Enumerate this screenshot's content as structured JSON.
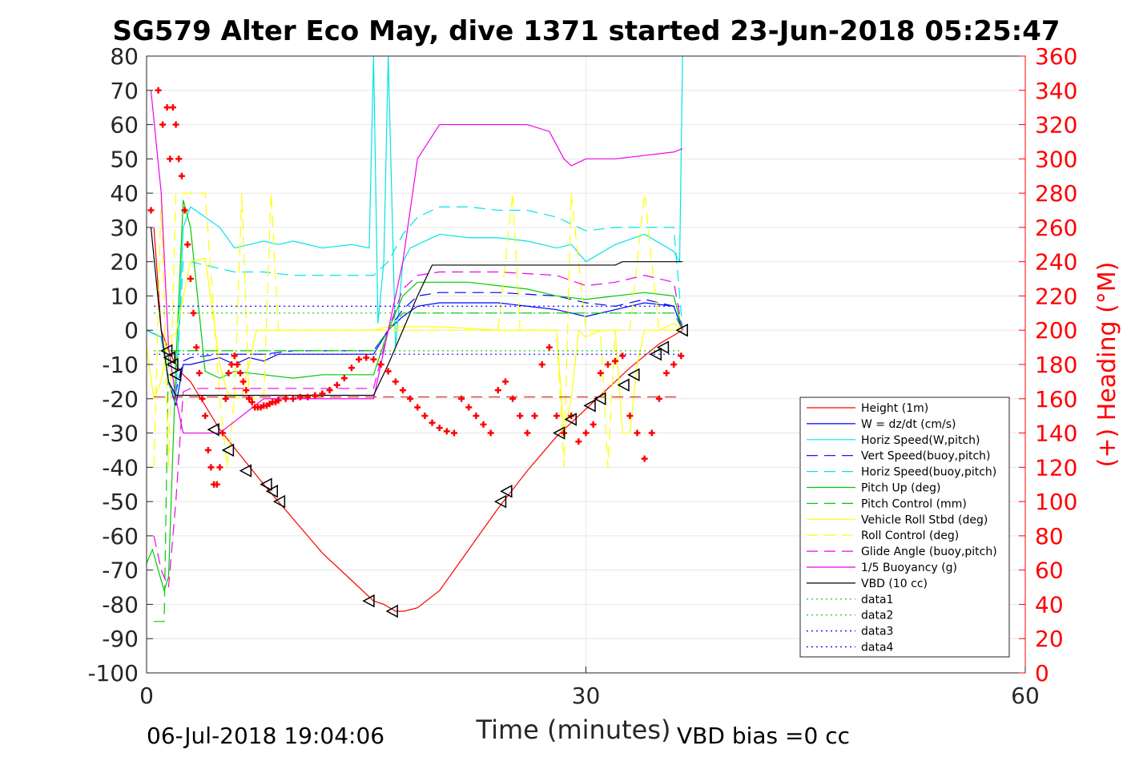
{
  "chart_data": {
    "type": "line",
    "title": "SG579 Alter Eco May, dive 1371 started 23-Jun-2018 05:25:47",
    "xlabel": "Time (minutes)",
    "ylabel_right": "(+) Heading (°M)",
    "xlim": [
      0,
      60
    ],
    "ylim_left": [
      -100,
      80
    ],
    "ylim_right": [
      0,
      360
    ],
    "xticks": [
      0,
      30,
      60
    ],
    "yticks_left": [
      80,
      70,
      60,
      50,
      40,
      30,
      20,
      10,
      0,
      -10,
      -20,
      -30,
      -40,
      -50,
      -60,
      -70,
      -80,
      -90,
      -100
    ],
    "yticks_right": [
      360,
      340,
      320,
      300,
      280,
      260,
      240,
      220,
      200,
      180,
      160,
      140,
      120,
      100,
      80,
      60,
      40,
      20,
      0
    ],
    "grid": "major x",
    "legend_position": "bottom-right",
    "footer_left": "06-Jul-2018 19:04:06",
    "footer_right": "VBD bias =0 cc",
    "series": [
      {
        "name": "Height (1m)",
        "color": "#ff0000",
        "style": "solid",
        "x": [
          0.5,
          1,
          1.5,
          2,
          2.5,
          3,
          5,
          8,
          10,
          12,
          14,
          15.5,
          16.2,
          17,
          17.6,
          18.5,
          20,
          22,
          24,
          26,
          28,
          29,
          31,
          33,
          35,
          36.6
        ],
        "y": [
          30,
          0,
          -6,
          -10,
          -13,
          -15,
          -29,
          -45,
          -55,
          -65,
          -73,
          -79,
          -80,
          -82,
          -82,
          -81,
          -76,
          -64,
          -52,
          -41,
          -31,
          -27,
          -19,
          -11,
          -4,
          0
        ]
      },
      {
        "name": "W = dz/dt (cm/s)",
        "color": "#0000ff",
        "style": "solid",
        "x": [
          0,
          1,
          1.5,
          2,
          2.5,
          3,
          4,
          5,
          6,
          7,
          8,
          9,
          10,
          12,
          14,
          15.5,
          16.5,
          17.5,
          18.5,
          20,
          22,
          24,
          26,
          28,
          29,
          30,
          32,
          34,
          36,
          36.6
        ],
        "y": [
          0,
          -2,
          -15,
          -22,
          -10,
          -10,
          -9,
          -8,
          -10,
          -8,
          -9,
          -7,
          -7,
          -7,
          -7,
          -7,
          0,
          4,
          7,
          8,
          8,
          8,
          7,
          6,
          5,
          4,
          6,
          8,
          7,
          0
        ]
      },
      {
        "name": "Horiz Speed(W,pitch)",
        "color": "#00e5e5",
        "style": "solid",
        "x": [
          0,
          1,
          1.5,
          2,
          2.5,
          3,
          4,
          5,
          6,
          7,
          8,
          9,
          10,
          12,
          14,
          15.2,
          15.5,
          15.8,
          16.2,
          16.5,
          17,
          17.5,
          18,
          18.5,
          20,
          22,
          24,
          26,
          28,
          29,
          30,
          32,
          34,
          36,
          36.4,
          36.6
        ],
        "y": [
          0,
          -2,
          -15,
          -20,
          30,
          36,
          33,
          30,
          24,
          25,
          26,
          25,
          26,
          24,
          25,
          24,
          80,
          2,
          20,
          80,
          -5,
          20,
          24,
          25,
          28,
          27,
          27,
          26,
          24,
          25,
          20,
          25,
          28,
          23,
          20,
          80
        ]
      },
      {
        "name": "Vert Speed(buoy,pitch)",
        "color": "#0000ff",
        "style": "dashed",
        "x": [
          0,
          1,
          1.5,
          2,
          2.5,
          3,
          5,
          8,
          10,
          12,
          14,
          15.5,
          16.5,
          17.5,
          18.5,
          20,
          24,
          28,
          30,
          32,
          34,
          36,
          36.6
        ],
        "y": [
          0,
          -2,
          -15,
          -18,
          -9,
          -8,
          -7,
          -7,
          -6,
          -6,
          -6,
          -6,
          0,
          6,
          10,
          11,
          11,
          10,
          8,
          7,
          9,
          7,
          0
        ]
      },
      {
        "name": "Horiz Speed(buoy,pitch)",
        "color": "#00e5e5",
        "style": "dashed",
        "x": [
          0,
          1,
          1.5,
          2,
          2.5,
          3,
          4,
          5,
          6,
          8,
          10,
          12,
          14,
          15.5,
          16.5,
          17.5,
          18.5,
          20,
          22,
          24,
          26,
          28,
          30,
          32,
          34,
          36,
          36.6
        ],
        "y": [
          0,
          -2,
          -15,
          -18,
          20,
          20,
          19,
          18,
          17,
          17,
          16,
          16,
          16,
          16,
          20,
          28,
          33,
          36,
          36,
          35,
          35,
          33,
          29,
          30,
          30,
          30,
          0
        ]
      },
      {
        "name": "Pitch Up (deg)",
        "color": "#00cc00",
        "style": "solid",
        "x": [
          0,
          0.4,
          0.8,
          1.2,
          1.5,
          2,
          2.5,
          3,
          4,
          5,
          6,
          8,
          10,
          12,
          14,
          15.5,
          16.5,
          17.5,
          18.5,
          20,
          22,
          24,
          26,
          28,
          30,
          32,
          34,
          36,
          36.6
        ],
        "y": [
          -68,
          -64,
          -70,
          -76,
          -72,
          -10,
          38,
          30,
          -12,
          -14,
          -12,
          -13,
          -14,
          -13,
          -13,
          -13,
          0,
          10,
          14,
          14,
          14,
          13,
          12,
          10,
          9,
          10,
          11,
          10,
          0
        ]
      },
      {
        "name": "Pitch Control (mm)",
        "color": "#00cc00",
        "style": "dashed",
        "x": [
          0.5,
          1.2,
          1.3,
          1.5,
          2,
          3,
          5,
          8,
          10,
          14,
          15.5,
          16.5,
          17.5,
          18.5,
          20,
          24,
          28,
          32,
          36,
          36.6
        ],
        "y": [
          -85,
          -85,
          -60,
          -6,
          -6,
          -6,
          -6,
          -6,
          -6,
          -6,
          -6,
          0,
          5,
          5,
          5,
          5,
          5,
          5,
          5,
          0
        ]
      },
      {
        "name": "Vehicle Roll Stbd (deg)",
        "color": "#ffff00",
        "style": "solid",
        "x": [
          0,
          0.5,
          1,
          1.5,
          2,
          3,
          4,
          5,
          5.5,
          6,
          6.5,
          7,
          7.5,
          8,
          8.5,
          9,
          14,
          15.5,
          16.5,
          18,
          20,
          24,
          26,
          28,
          28.5,
          29,
          29.5,
          30,
          31,
          32,
          32.5,
          33,
          33.5,
          34,
          35,
          36,
          36.6
        ],
        "y": [
          -5,
          -20,
          -15,
          -2,
          -1,
          20,
          21,
          -10,
          -18,
          -20,
          -19,
          -10,
          0,
          0,
          0,
          0,
          0,
          0,
          1,
          1,
          1,
          0,
          0,
          0,
          -30,
          -20,
          0,
          -2,
          0,
          0,
          -30,
          -30,
          -10,
          0,
          0,
          2,
          0
        ]
      },
      {
        "name": "Roll Control (deg)",
        "color": "#ffff00",
        "style": "dashed",
        "x": [
          0.5,
          1,
          1.5,
          2,
          2.5,
          3,
          4,
          5,
          5.5,
          6,
          6.5,
          7,
          8,
          8.5,
          9,
          14,
          15.5,
          16.5,
          24,
          25,
          25.5,
          26,
          28,
          28.5,
          29,
          30,
          31,
          31.5,
          32,
          33,
          34,
          35,
          36,
          36.6
        ],
        "y": [
          -40,
          40,
          -40,
          40,
          40,
          40,
          40,
          -20,
          -40,
          -20,
          40,
          -20,
          -20,
          40,
          0,
          0,
          0,
          0,
          0,
          40,
          0,
          0,
          0,
          -40,
          40,
          0,
          0,
          -40,
          0,
          0,
          40,
          0,
          0,
          0
        ]
      },
      {
        "name": "Glide Angle (buoy,pitch)",
        "color": "#ee00ee",
        "style": "dashed",
        "x": [
          0.5,
          1,
          1.5,
          2,
          2.5,
          3,
          5,
          8,
          10,
          12,
          14,
          15.5,
          16.5,
          17.5,
          18.5,
          20,
          24,
          28,
          30,
          32,
          34,
          36,
          36.6
        ],
        "y": [
          -60,
          -70,
          -75,
          -50,
          -18,
          -17,
          -17,
          -17,
          -17,
          -17,
          -17,
          -17,
          0,
          12,
          16,
          17,
          17,
          16,
          13,
          14,
          16,
          14,
          0
        ]
      },
      {
        "name": "1/5 Buoyancy (g)",
        "color": "#ee00ee",
        "style": "solid",
        "x": [
          0.3,
          1,
          1.5,
          2,
          2.5,
          3,
          5,
          8,
          10,
          14,
          15.5,
          16.5,
          17.5,
          18.5,
          20,
          22,
          24,
          26,
          27.5,
          28.5,
          29,
          30,
          32,
          34,
          36,
          36.6
        ],
        "y": [
          70,
          40,
          -5,
          -20,
          -30,
          -30,
          -30,
          -20,
          -20,
          -20,
          -20,
          0,
          20,
          50,
          60,
          60,
          60,
          60,
          58,
          50,
          48,
          50,
          50,
          51,
          52,
          53
        ]
      },
      {
        "name": "VBD (10 cc)",
        "color": "#000000",
        "style": "solid",
        "x": [
          0.3,
          1,
          1.5,
          2,
          2.5,
          3,
          5,
          8,
          10,
          14,
          15.5,
          16.5,
          17.5,
          18.5,
          19.5,
          22,
          24,
          28,
          30,
          32,
          32.5,
          34,
          36,
          36.6
        ],
        "y": [
          30,
          0,
          -15,
          -19,
          -19,
          -19,
          -19,
          -19,
          -19,
          -19,
          -19,
          -10,
          0,
          10,
          19,
          19,
          19,
          19,
          19,
          19,
          20,
          20,
          20,
          20
        ]
      },
      {
        "name": "data1",
        "color": "#00cc00",
        "style": "dotted",
        "x": [
          0.5,
          36.6
        ],
        "y": [
          -6,
          -6
        ]
      },
      {
        "name": "data2",
        "color": "#00cc00",
        "style": "dotted",
        "x": [
          0.5,
          36.6
        ],
        "y": [
          5,
          5
        ]
      },
      {
        "name": "data3",
        "color": "#0000ff",
        "style": "dotted",
        "x": [
          0.5,
          36.6
        ],
        "y": [
          7,
          7
        ]
      },
      {
        "name": "data4",
        "color": "#0000ff",
        "style": "dotted",
        "x": [
          0.5,
          36.6
        ],
        "y": [
          -7,
          -7
        ]
      }
    ],
    "reference_line": {
      "color": "#cc0000",
      "style": "dashed",
      "y": -19.5,
      "x": [
        0.5,
        36.6
      ]
    },
    "heading_points": {
      "axis": "right",
      "color": "#ff0000",
      "x": [
        0.3,
        0.8,
        1.1,
        1.4,
        1.6,
        1.8,
        2.0,
        2.2,
        2.4,
        2.6,
        2.8,
        3.0,
        3.2,
        3.4,
        3.6,
        3.8,
        4.0,
        4.2,
        4.4,
        4.6,
        4.8,
        5.0,
        5.2,
        5.4,
        5.6,
        5.8,
        6.0,
        6.2,
        6.4,
        6.6,
        6.8,
        7.0,
        7.2,
        7.4,
        7.6,
        7.8,
        8.0,
        8.2,
        8.4,
        8.6,
        8.8,
        9.0,
        9.5,
        10,
        10.5,
        11,
        11.5,
        12,
        12.5,
        13,
        13.5,
        14,
        14.5,
        15,
        15.5,
        16,
        16.5,
        17,
        17.5,
        18,
        18.5,
        19,
        19.5,
        20,
        20.5,
        21,
        21.5,
        22,
        22.5,
        23,
        23.5,
        24,
        24.5,
        25,
        25.5,
        26,
        26.5,
        27,
        27.5,
        28,
        28.5,
        29,
        29.5,
        30,
        30.5,
        31,
        31.5,
        32,
        32.5,
        33,
        33.5,
        34,
        34.5,
        35,
        35.5,
        36,
        36.5
      ],
      "y": [
        270,
        340,
        320,
        330,
        300,
        330,
        320,
        300,
        290,
        270,
        250,
        230,
        210,
        190,
        175,
        160,
        150,
        130,
        120,
        110,
        110,
        120,
        140,
        160,
        175,
        180,
        185,
        180,
        175,
        170,
        165,
        160,
        158,
        155,
        155,
        155,
        156,
        156,
        157,
        158,
        158,
        159,
        160,
        160,
        161,
        161,
        162,
        163,
        165,
        168,
        172,
        178,
        183,
        184,
        183,
        180,
        176,
        170,
        165,
        160,
        155,
        150,
        146,
        143,
        141,
        140,
        160,
        155,
        150,
        145,
        140,
        165,
        170,
        160,
        150,
        140,
        150,
        180,
        190,
        150,
        140,
        150,
        135,
        140,
        145,
        175,
        180,
        182,
        185,
        150,
        140,
        125,
        140,
        160,
        175,
        180,
        185
      ]
    },
    "triangle_markers": {
      "x": [
        1.4,
        1.6,
        1.8,
        2.0,
        4.6,
        5.6,
        6.8,
        8.2,
        8.6,
        9.1,
        15.2,
        16.8,
        24.2,
        24.6,
        28.2,
        29.0,
        30.3,
        31.0,
        32.6,
        33.3,
        34.8,
        35.3,
        36.6
      ],
      "y": [
        -6,
        -8,
        -10,
        -13,
        -29,
        -35,
        -41,
        -45,
        -47,
        -50,
        -79,
        -82,
        -50,
        -47,
        -30,
        -26,
        -22,
        -20,
        -16,
        -13,
        -7,
        -5,
        0
      ]
    }
  }
}
